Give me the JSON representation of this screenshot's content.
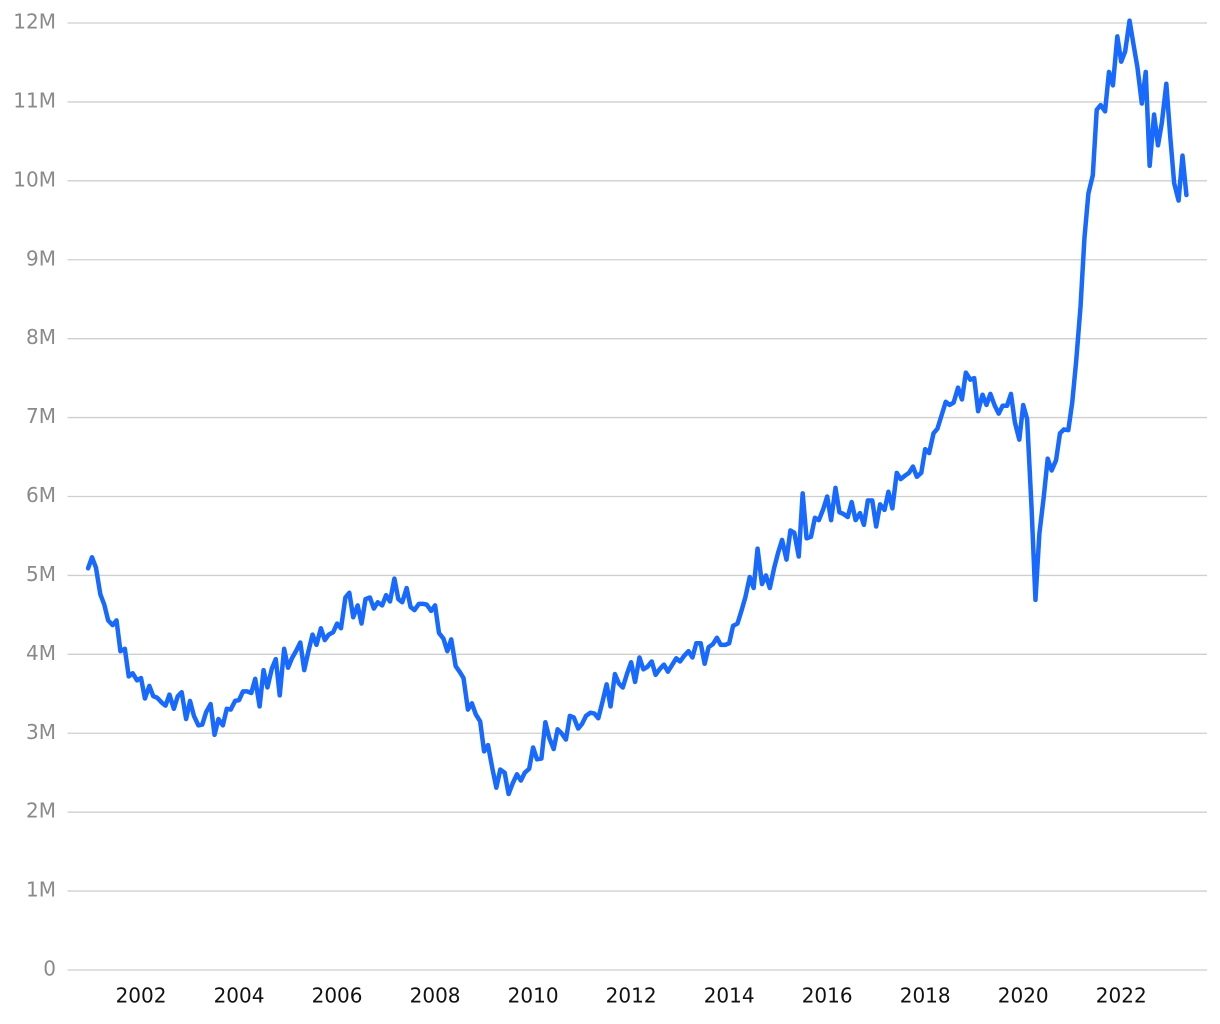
{
  "chart_data": {
    "type": "line",
    "x": [
      2000.92,
      2001.0,
      2001.08,
      2001.17,
      2001.25,
      2001.33,
      2001.42,
      2001.5,
      2001.58,
      2001.67,
      2001.75,
      2001.83,
      2001.92,
      2002.0,
      2002.08,
      2002.17,
      2002.25,
      2002.33,
      2002.42,
      2002.5,
      2002.58,
      2002.67,
      2002.75,
      2002.83,
      2002.92,
      2003.0,
      2003.08,
      2003.17,
      2003.25,
      2003.33,
      2003.42,
      2003.5,
      2003.58,
      2003.67,
      2003.75,
      2003.83,
      2003.92,
      2004.0,
      2004.08,
      2004.17,
      2004.25,
      2004.33,
      2004.42,
      2004.5,
      2004.58,
      2004.67,
      2004.75,
      2004.83,
      2004.92,
      2005.0,
      2005.08,
      2005.17,
      2005.25,
      2005.33,
      2005.42,
      2005.5,
      2005.58,
      2005.67,
      2005.75,
      2005.83,
      2005.92,
      2006.0,
      2006.08,
      2006.17,
      2006.25,
      2006.33,
      2006.42,
      2006.5,
      2006.58,
      2006.67,
      2006.75,
      2006.83,
      2006.92,
      2007.0,
      2007.08,
      2007.17,
      2007.25,
      2007.33,
      2007.42,
      2007.5,
      2007.58,
      2007.67,
      2007.75,
      2007.83,
      2007.92,
      2008.0,
      2008.08,
      2008.17,
      2008.25,
      2008.33,
      2008.42,
      2008.5,
      2008.58,
      2008.67,
      2008.75,
      2008.83,
      2008.92,
      2009.0,
      2009.08,
      2009.17,
      2009.25,
      2009.33,
      2009.42,
      2009.5,
      2009.58,
      2009.67,
      2009.75,
      2009.83,
      2009.92,
      2010.0,
      2010.08,
      2010.17,
      2010.25,
      2010.33,
      2010.42,
      2010.5,
      2010.58,
      2010.67,
      2010.75,
      2010.83,
      2010.92,
      2011.0,
      2011.08,
      2011.17,
      2011.25,
      2011.33,
      2011.42,
      2011.5,
      2011.58,
      2011.67,
      2011.75,
      2011.83,
      2011.92,
      2012.0,
      2012.08,
      2012.17,
      2012.25,
      2012.33,
      2012.42,
      2012.5,
      2012.58,
      2012.67,
      2012.75,
      2012.83,
      2012.92,
      2013.0,
      2013.08,
      2013.17,
      2013.25,
      2013.33,
      2013.42,
      2013.5,
      2013.58,
      2013.67,
      2013.75,
      2013.83,
      2013.92,
      2014.0,
      2014.08,
      2014.17,
      2014.25,
      2014.33,
      2014.42,
      2014.5,
      2014.58,
      2014.67,
      2014.75,
      2014.83,
      2014.92,
      2015.0,
      2015.08,
      2015.17,
      2015.25,
      2015.33,
      2015.42,
      2015.5,
      2015.58,
      2015.67,
      2015.75,
      2015.83,
      2015.92,
      2016.0,
      2016.08,
      2016.17,
      2016.25,
      2016.33,
      2016.42,
      2016.5,
      2016.58,
      2016.67,
      2016.75,
      2016.83,
      2016.92,
      2017.0,
      2017.08,
      2017.17,
      2017.25,
      2017.33,
      2017.42,
      2017.5,
      2017.58,
      2017.67,
      2017.75,
      2017.83,
      2017.92,
      2018.0,
      2018.08,
      2018.17,
      2018.25,
      2018.33,
      2018.42,
      2018.5,
      2018.58,
      2018.67,
      2018.75,
      2018.83,
      2018.92,
      2019.0,
      2019.08,
      2019.17,
      2019.25,
      2019.33,
      2019.42,
      2019.5,
      2019.58,
      2019.67,
      2019.75,
      2019.83,
      2019.92,
      2020.0,
      2020.08,
      2020.17,
      2020.25,
      2020.33,
      2020.42,
      2020.5,
      2020.58,
      2020.67,
      2020.75,
      2020.83,
      2020.92,
      2021.0,
      2021.08,
      2021.17,
      2021.25,
      2021.33,
      2021.42,
      2021.5,
      2021.58,
      2021.67,
      2021.75,
      2021.83,
      2021.92,
      2022.0,
      2022.08,
      2022.17,
      2022.25,
      2022.33,
      2022.42,
      2022.5,
      2022.58,
      2022.67,
      2022.75,
      2022.83,
      2022.92,
      2023.0,
      2023.08,
      2023.17,
      2023.25,
      2023.33
    ],
    "series": [
      {
        "color": "#1769ff",
        "values": [
          5.09,
          5.23,
          5.1,
          4.76,
          4.63,
          4.43,
          4.37,
          4.43,
          4.04,
          4.07,
          3.72,
          3.76,
          3.67,
          3.7,
          3.44,
          3.6,
          3.47,
          3.45,
          3.39,
          3.35,
          3.49,
          3.31,
          3.47,
          3.52,
          3.18,
          3.41,
          3.22,
          3.1,
          3.11,
          3.27,
          3.37,
          2.98,
          3.18,
          3.1,
          3.31,
          3.3,
          3.41,
          3.42,
          3.53,
          3.53,
          3.51,
          3.69,
          3.34,
          3.8,
          3.58,
          3.82,
          3.94,
          3.48,
          4.07,
          3.83,
          3.95,
          4.05,
          4.15,
          3.8,
          4.05,
          4.25,
          4.12,
          4.33,
          4.18,
          4.25,
          4.28,
          4.39,
          4.33,
          4.72,
          4.78,
          4.47,
          4.62,
          4.39,
          4.7,
          4.72,
          4.58,
          4.66,
          4.62,
          4.75,
          4.67,
          4.96,
          4.7,
          4.66,
          4.84,
          4.6,
          4.56,
          4.64,
          4.64,
          4.63,
          4.55,
          4.62,
          4.27,
          4.2,
          4.04,
          4.19,
          3.85,
          3.78,
          3.7,
          3.3,
          3.38,
          3.24,
          3.15,
          2.77,
          2.85,
          2.55,
          2.31,
          2.54,
          2.5,
          2.23,
          2.36,
          2.48,
          2.4,
          2.5,
          2.55,
          2.82,
          2.67,
          2.68,
          3.14,
          2.94,
          2.8,
          3.05,
          3.0,
          2.92,
          3.22,
          3.2,
          3.06,
          3.12,
          3.22,
          3.26,
          3.25,
          3.19,
          3.41,
          3.62,
          3.34,
          3.75,
          3.63,
          3.58,
          3.76,
          3.9,
          3.65,
          3.96,
          3.81,
          3.84,
          3.91,
          3.74,
          3.81,
          3.87,
          3.78,
          3.86,
          3.95,
          3.91,
          3.98,
          4.04,
          3.96,
          4.14,
          4.14,
          3.88,
          4.09,
          4.13,
          4.21,
          4.12,
          4.12,
          4.14,
          4.36,
          4.39,
          4.55,
          4.72,
          4.98,
          4.84,
          5.34,
          4.89,
          5.0,
          4.84,
          5.1,
          5.29,
          5.45,
          5.2,
          5.57,
          5.54,
          5.24,
          6.04,
          5.47,
          5.49,
          5.73,
          5.7,
          5.84,
          6.0,
          5.7,
          6.11,
          5.8,
          5.78,
          5.74,
          5.93,
          5.7,
          5.79,
          5.64,
          5.95,
          5.95,
          5.62,
          5.9,
          5.83,
          6.06,
          5.85,
          6.3,
          6.22,
          6.26,
          6.3,
          6.38,
          6.25,
          6.3,
          6.6,
          6.55,
          6.8,
          6.86,
          7.02,
          7.2,
          7.16,
          7.19,
          7.38,
          7.23,
          7.57,
          7.48,
          7.5,
          7.08,
          7.29,
          7.16,
          7.3,
          7.15,
          7.05,
          7.15,
          7.15,
          7.3,
          6.94,
          6.72,
          7.16,
          6.98,
          5.86,
          4.69,
          5.53,
          6.0,
          6.48,
          6.33,
          6.46,
          6.8,
          6.85,
          6.84,
          7.19,
          7.71,
          8.41,
          9.28,
          9.84,
          10.07,
          10.9,
          10.96,
          10.88,
          11.38,
          11.21,
          11.83,
          11.51,
          11.64,
          12.03,
          11.73,
          11.44,
          10.98,
          11.38,
          10.19,
          10.84,
          10.45,
          10.74,
          11.23,
          10.56,
          9.97,
          9.75,
          10.32,
          9.82
        ]
      }
    ],
    "xlim": [
      2000.5,
      2023.75
    ],
    "xticks": [
      2002,
      2004,
      2006,
      2008,
      2010,
      2012,
      2014,
      2016,
      2018,
      2020,
      2022
    ],
    "ylim": [
      0,
      12
    ],
    "yticks": [
      0,
      {
        "value": 1,
        "label": "1M"
      },
      {
        "value": 2,
        "label": "2M"
      },
      {
        "value": 3,
        "label": "3M"
      },
      {
        "value": 4,
        "label": "4M"
      },
      {
        "value": 5,
        "label": "5M"
      },
      {
        "value": 6,
        "label": "6M"
      },
      {
        "value": 7,
        "label": "7M"
      },
      {
        "value": 8,
        "label": "8M"
      },
      {
        "value": 9,
        "label": "9M"
      },
      {
        "value": 10,
        "label": "10M"
      },
      {
        "value": 11,
        "label": "11M"
      },
      {
        "value": 12,
        "label": "12M"
      }
    ],
    "grid": true
  }
}
